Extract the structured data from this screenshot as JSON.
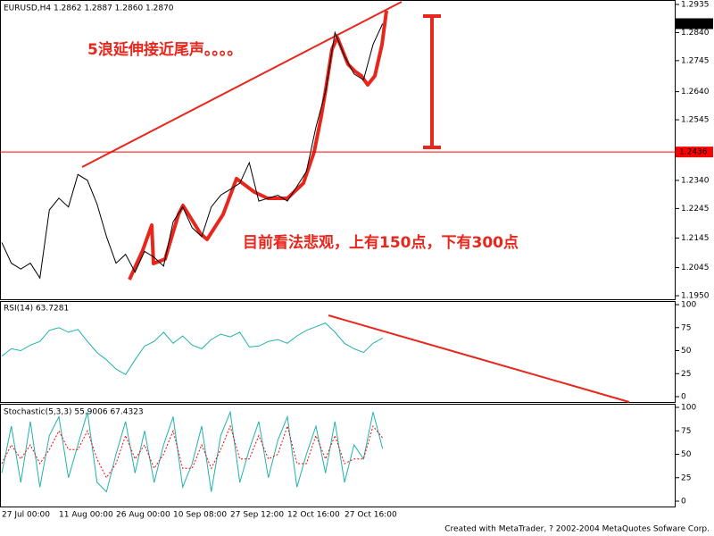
{
  "chart_data": [
    {
      "type": "line",
      "title": "EURUSD,H4 1.2862 1.2887 1.2860 1.2870",
      "color": "#000000",
      "values": [
        1.213,
        1.206,
        1.204,
        1.206,
        1.201,
        1.224,
        1.228,
        1.225,
        1.236,
        1.234,
        1.226,
        1.215,
        1.206,
        1.209,
        1.203,
        1.21,
        1.208,
        1.205,
        1.22,
        1.225,
        1.218,
        1.215,
        1.225,
        1.229,
        1.231,
        1.233,
        1.24,
        1.227,
        1.228,
        1.229,
        1.227,
        1.232,
        1.237,
        1.252,
        1.264,
        1.284,
        1.276,
        1.27,
        1.268,
        1.28,
        1.287
      ],
      "ylim": [
        1.1935,
        1.295
      ],
      "yticks": [
        1.2935,
        {
          "value": 1.284,
          "label": "1.2840"
        },
        1.2745,
        {
          "value": 1.264,
          "label": "1.2640"
        },
        1.2545,
        {
          "value": 1.234,
          "label": "1.2340"
        },
        1.2245,
        1.2145,
        1.2045,
        {
          "value": 1.195,
          "label": "1.1950"
        }
      ],
      "last_price": {
        "value": 1.287,
        "label": "1.2870"
      },
      "hline": {
        "value": 1.2436,
        "label": "1.2436",
        "color": "#ff0000"
      },
      "annotations": [
        "5浪延伸接近尾声。。。。",
        "目前看法悲观，上有150点，下有300点"
      ]
    },
    {
      "type": "line",
      "title": "RSI(14) 63.7281",
      "color": "#20b2aa",
      "values": [
        44,
        52,
        50,
        56,
        60,
        72,
        75,
        70,
        73,
        60,
        48,
        40,
        30,
        24,
        40,
        55,
        60,
        70,
        58,
        66,
        56,
        52,
        62,
        68,
        65,
        70,
        54,
        55,
        60,
        62,
        58,
        66,
        72,
        76,
        80,
        70,
        58,
        52,
        48,
        58,
        63.7281
      ],
      "ylim": [
        0,
        100
      ],
      "yticks": [
        100,
        75,
        50,
        25,
        0
      ]
    },
    {
      "type": "line",
      "title": "Stochastic(5,3,3) 55.9006 67.4323",
      "categories": [
        "27 Jul 00:00",
        null,
        null,
        null,
        null,
        null,
        "11 Aug 00:00",
        null,
        null,
        null,
        null,
        null,
        "26 Aug 00:00",
        null,
        null,
        null,
        null,
        null,
        "10 Sep 08:00",
        null,
        null,
        null,
        null,
        null,
        "27 Sep 12:00",
        null,
        null,
        null,
        null,
        null,
        "12 Oct 16:00",
        null,
        null,
        null,
        null,
        null,
        "27 Oct 16:00",
        null,
        null,
        null,
        null
      ],
      "series": [
        {
          "color": "#20b2aa",
          "values": [
            30,
            80,
            20,
            85,
            15,
            70,
            90,
            25,
            60,
            95,
            20,
            10,
            50,
            85,
            30,
            75,
            20,
            60,
            90,
            15,
            40,
            80,
            10,
            70,
            95,
            20,
            55,
            85,
            25,
            65,
            90,
            15,
            50,
            80,
            30,
            85,
            20,
            60,
            45,
            95,
            55.9006
          ]
        },
        {
          "color": "#ff0000",
          "dashed": true,
          "values": [
            40,
            60,
            45,
            60,
            40,
            55,
            75,
            55,
            55,
            75,
            45,
            25,
            40,
            70,
            45,
            60,
            35,
            50,
            75,
            35,
            35,
            60,
            35,
            55,
            80,
            45,
            45,
            70,
            45,
            50,
            80,
            40,
            40,
            70,
            45,
            70,
            40,
            45,
            45,
            80,
            67.4323
          ]
        }
      ],
      "ylim": [
        0,
        100
      ],
      "yticks": [
        100,
        75,
        50,
        25,
        0
      ]
    }
  ],
  "footer": "Created with MetaTrader, ? 2002-2004 MetaQuotes Sofware Corp."
}
